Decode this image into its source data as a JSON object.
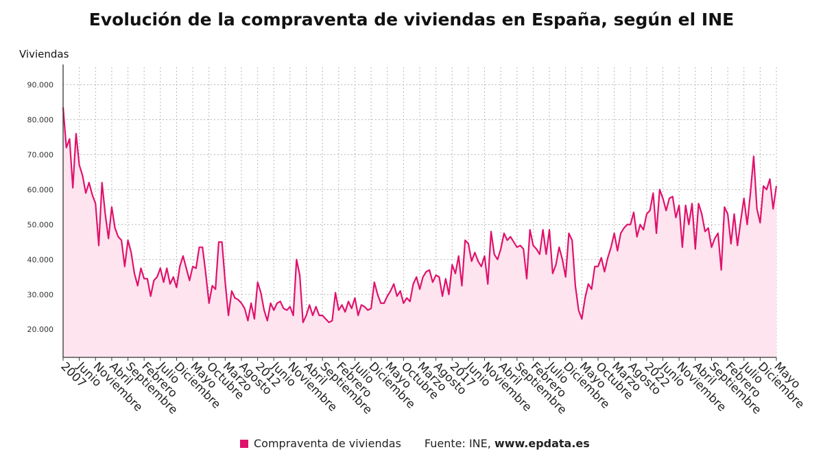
{
  "chart_data": {
    "type": "area",
    "title": "Evolución de la compraventa de viviendas en España, según el INE",
    "ylabel": "Viviendas",
    "ylim": [
      12000,
      95000
    ],
    "yticks": [
      20000,
      30000,
      40000,
      50000,
      60000,
      70000,
      80000,
      90000
    ],
    "ytick_labels": [
      "20.000",
      "30.000",
      "40.000",
      "50.000",
      "60.000",
      "70.000",
      "80.000",
      "90.000"
    ],
    "grid": true,
    "legend_position": "bottom",
    "xtick_labels": [
      "2007",
      "Junio",
      "Noviembre",
      "Abril",
      "Septiembre",
      "Febrero",
      "Julio",
      "Diciembre",
      "Mayo",
      "Octubre",
      "Marzo",
      "Agosto",
      "2012",
      "Junio",
      "Noviembre",
      "Abril",
      "Septiembre",
      "Febrero",
      "Julio",
      "Diciembre",
      "Mayo",
      "Octubre",
      "Marzo",
      "Agosto",
      "2017",
      "Junio",
      "Noviembre",
      "Abril",
      "Septiembre",
      "Febrero",
      "Julio",
      "Diciembre",
      "Mayo",
      "Octubre",
      "Marzo",
      "Agosto",
      "2022",
      "Junio",
      "Noviembre",
      "Abril",
      "Septiembre",
      "Febrero",
      "Julio",
      "Diciembre",
      "Mayo"
    ],
    "x_start": "2007-01",
    "x_end": "2025-05",
    "series": [
      {
        "name": "Compraventa de viviendas",
        "color": "#e0116c",
        "fill": "#fde4ef",
        "values": [
          83500,
          72000,
          74500,
          60500,
          76000,
          67000,
          64000,
          59000,
          62000,
          58500,
          56000,
          44000,
          62000,
          53000,
          46000,
          55000,
          49000,
          46500,
          45500,
          38000,
          45500,
          42000,
          36000,
          32500,
          37500,
          34500,
          34500,
          29500,
          34000,
          35000,
          37500,
          33500,
          37500,
          33000,
          35000,
          32000,
          38000,
          41000,
          37500,
          34000,
          38000,
          37500,
          43500,
          43500,
          36000,
          27500,
          32500,
          31500,
          45000,
          45000,
          33500,
          24000,
          31000,
          29000,
          28500,
          27500,
          26000,
          22500,
          27500,
          23000,
          33500,
          30500,
          25500,
          22500,
          27500,
          25500,
          27500,
          28000,
          26000,
          25500,
          26500,
          24000,
          40000,
          35500,
          22000,
          24000,
          27000,
          24000,
          26500,
          24000,
          24000,
          23000,
          22000,
          22500,
          30500,
          25500,
          27000,
          25000,
          28000,
          26000,
          29000,
          24000,
          27000,
          26500,
          25500,
          26000,
          33500,
          30000,
          27500,
          27500,
          29500,
          31000,
          33000,
          29500,
          31000,
          27500,
          29000,
          28000,
          33000,
          35000,
          31500,
          35000,
          36500,
          37000,
          33500,
          35500,
          35000,
          29500,
          34500,
          30000,
          38500,
          36000,
          41000,
          32500,
          45500,
          44500,
          39500,
          42000,
          39500,
          38000,
          41000,
          33000,
          48000,
          41500,
          40000,
          43000,
          47500,
          45500,
          46500,
          45000,
          43500,
          44000,
          43000,
          34500,
          48500,
          44000,
          43000,
          41500,
          48500,
          41500,
          48500,
          36000,
          38500,
          43500,
          40000,
          35000,
          47500,
          45500,
          32500,
          25500,
          23000,
          29000,
          33000,
          31500,
          38000,
          38000,
          40500,
          36500,
          40500,
          43500,
          47500,
          42500,
          47500,
          49000,
          50000,
          50000,
          53500,
          46500,
          50000,
          48500,
          53000,
          54000,
          59000,
          47500,
          60000,
          57500,
          54000,
          57500,
          58000,
          52000,
          55500,
          43500,
          55500,
          50000,
          56000,
          43000,
          56000,
          53000,
          48000,
          49000,
          43500,
          46000,
          47500,
          37000,
          55000,
          53000,
          44500,
          53000,
          44000,
          51000,
          57500,
          50000,
          59000,
          69500,
          54500,
          50500,
          61000,
          60000,
          63000,
          54500,
          61000
        ]
      }
    ]
  },
  "legend": {
    "label": "Compraventa de viviendas"
  },
  "source": {
    "prefix": "Fuente: INE,",
    "site": "www.epdata.es"
  }
}
